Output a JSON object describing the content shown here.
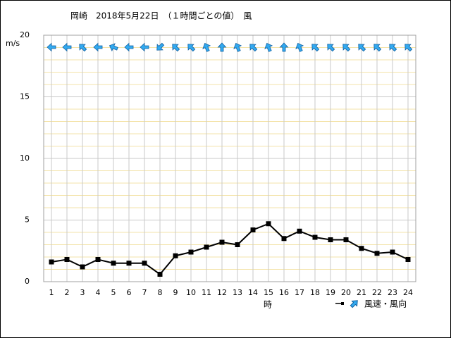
{
  "chart_data": {
    "type": "line",
    "title": "岡崎　2018年5月22日　（１時間ごとの値）　風",
    "y_label": "m/s",
    "x_label": "時",
    "legend_label": "風速・風向",
    "x": [
      1,
      2,
      3,
      4,
      5,
      6,
      7,
      8,
      9,
      10,
      11,
      12,
      13,
      14,
      15,
      16,
      17,
      18,
      19,
      20,
      21,
      22,
      23,
      24
    ],
    "values": [
      1.6,
      1.8,
      1.2,
      1.8,
      1.5,
      1.5,
      1.5,
      0.6,
      2.1,
      2.4,
      2.8,
      3.2,
      3.0,
      4.2,
      4.7,
      3.5,
      4.1,
      3.6,
      3.4,
      3.4,
      2.7,
      2.3,
      2.4,
      1.8
    ],
    "directions": [
      270,
      270,
      315,
      270,
      292.5,
      270,
      270,
      225,
      315,
      315,
      337.5,
      0,
      337.5,
      315,
      337.5,
      0,
      337.5,
      315,
      315,
      315,
      315,
      315,
      315,
      315
    ],
    "color": "#000000",
    "arrow_color": "#33aaf0",
    "xlim": [
      0.5,
      24.5
    ],
    "xticks": [
      1,
      2,
      3,
      4,
      5,
      6,
      7,
      8,
      9,
      10,
      11,
      12,
      13,
      14,
      15,
      16,
      17,
      18,
      19,
      20,
      21,
      22,
      23,
      24
    ],
    "ylim": [
      0,
      20
    ],
    "yticks": [
      0,
      5,
      10,
      15,
      20
    ],
    "yminorticks": [
      1,
      2,
      3,
      4,
      6,
      7,
      8,
      9,
      11,
      12,
      13,
      14,
      16,
      17,
      18,
      19
    ],
    "grid": true
  }
}
